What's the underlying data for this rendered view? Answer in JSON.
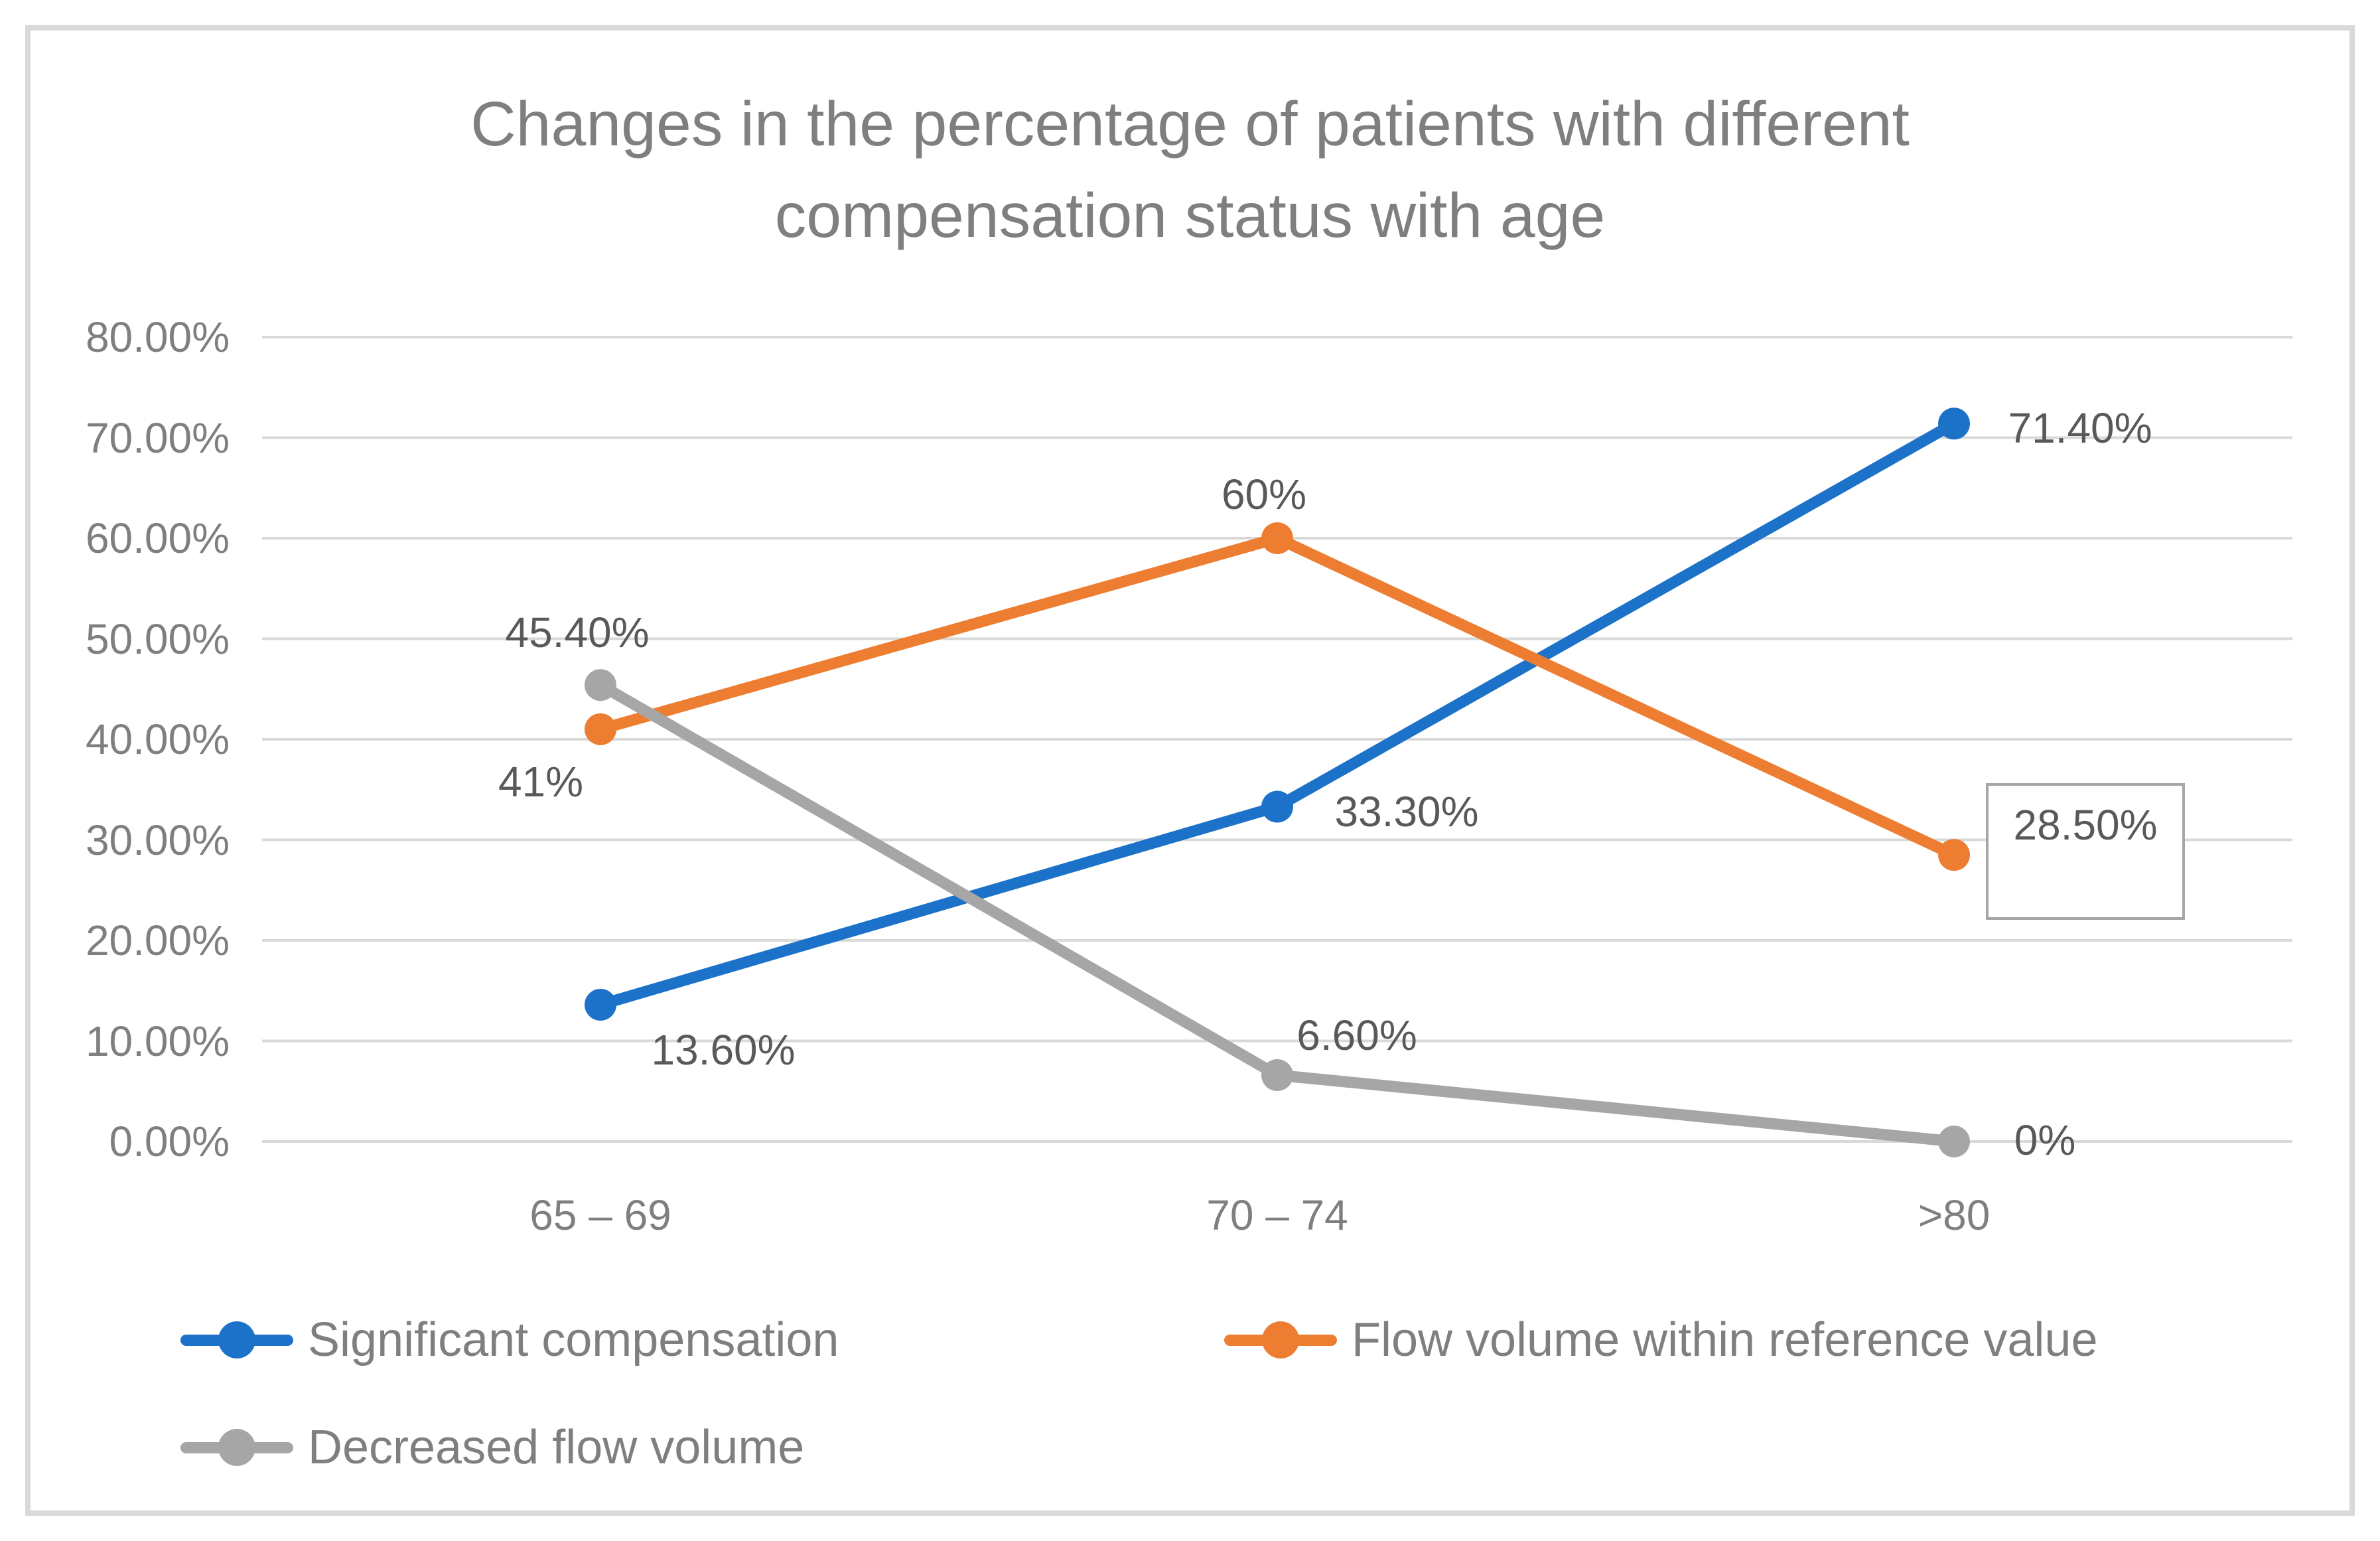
{
  "chart_data": {
    "type": "line",
    "title": "Changes in the percentage of patients with different compensation status with age",
    "title_lines": [
      "Changes in the percentage of patients with different",
      "compensation status with age"
    ],
    "categories": [
      "65 – 69",
      "70 – 74",
      ">80"
    ],
    "y_axis": {
      "min": 0,
      "max": 80,
      "step": 10,
      "tick_labels": [
        "0.00%",
        "10.00%",
        "20.00%",
        "30.00%",
        "40.00%",
        "50.00%",
        "60.00%",
        "70.00%",
        "80.00%"
      ],
      "grid": true
    },
    "series": [
      {
        "name": "Significant compensation",
        "color": "#1C72C8",
        "values": [
          13.6,
          33.3,
          71.4
        ],
        "labels": [
          "13.60%",
          "33.30%",
          "71.40%"
        ]
      },
      {
        "name": "Flow volume within reference value",
        "color": "#ED7D31",
        "values": [
          41,
          60,
          28.5
        ],
        "labels": [
          "41%",
          "60%",
          "28.50%"
        ]
      },
      {
        "name": "Decreased flow volume",
        "color": "#A6A6A6",
        "values": [
          45.4,
          6.6,
          0
        ],
        "labels": [
          "45.40%",
          "6.60%",
          "0%"
        ]
      }
    ],
    "legend_position": "bottom",
    "boxed_data_label": {
      "series_index": 1,
      "point_index": 2,
      "label": "28.50%"
    }
  },
  "styles": {
    "background": "#FFFFFF",
    "frame_border": "#D9D9D9",
    "gridline": "#D9D9D9",
    "title_text": "#7F7F7F",
    "axis_text": "#7F7F7F",
    "legend_text": "#7F7F7F",
    "data_label_text": "#595959",
    "boxed_label_border": "#A6A6A6"
  }
}
